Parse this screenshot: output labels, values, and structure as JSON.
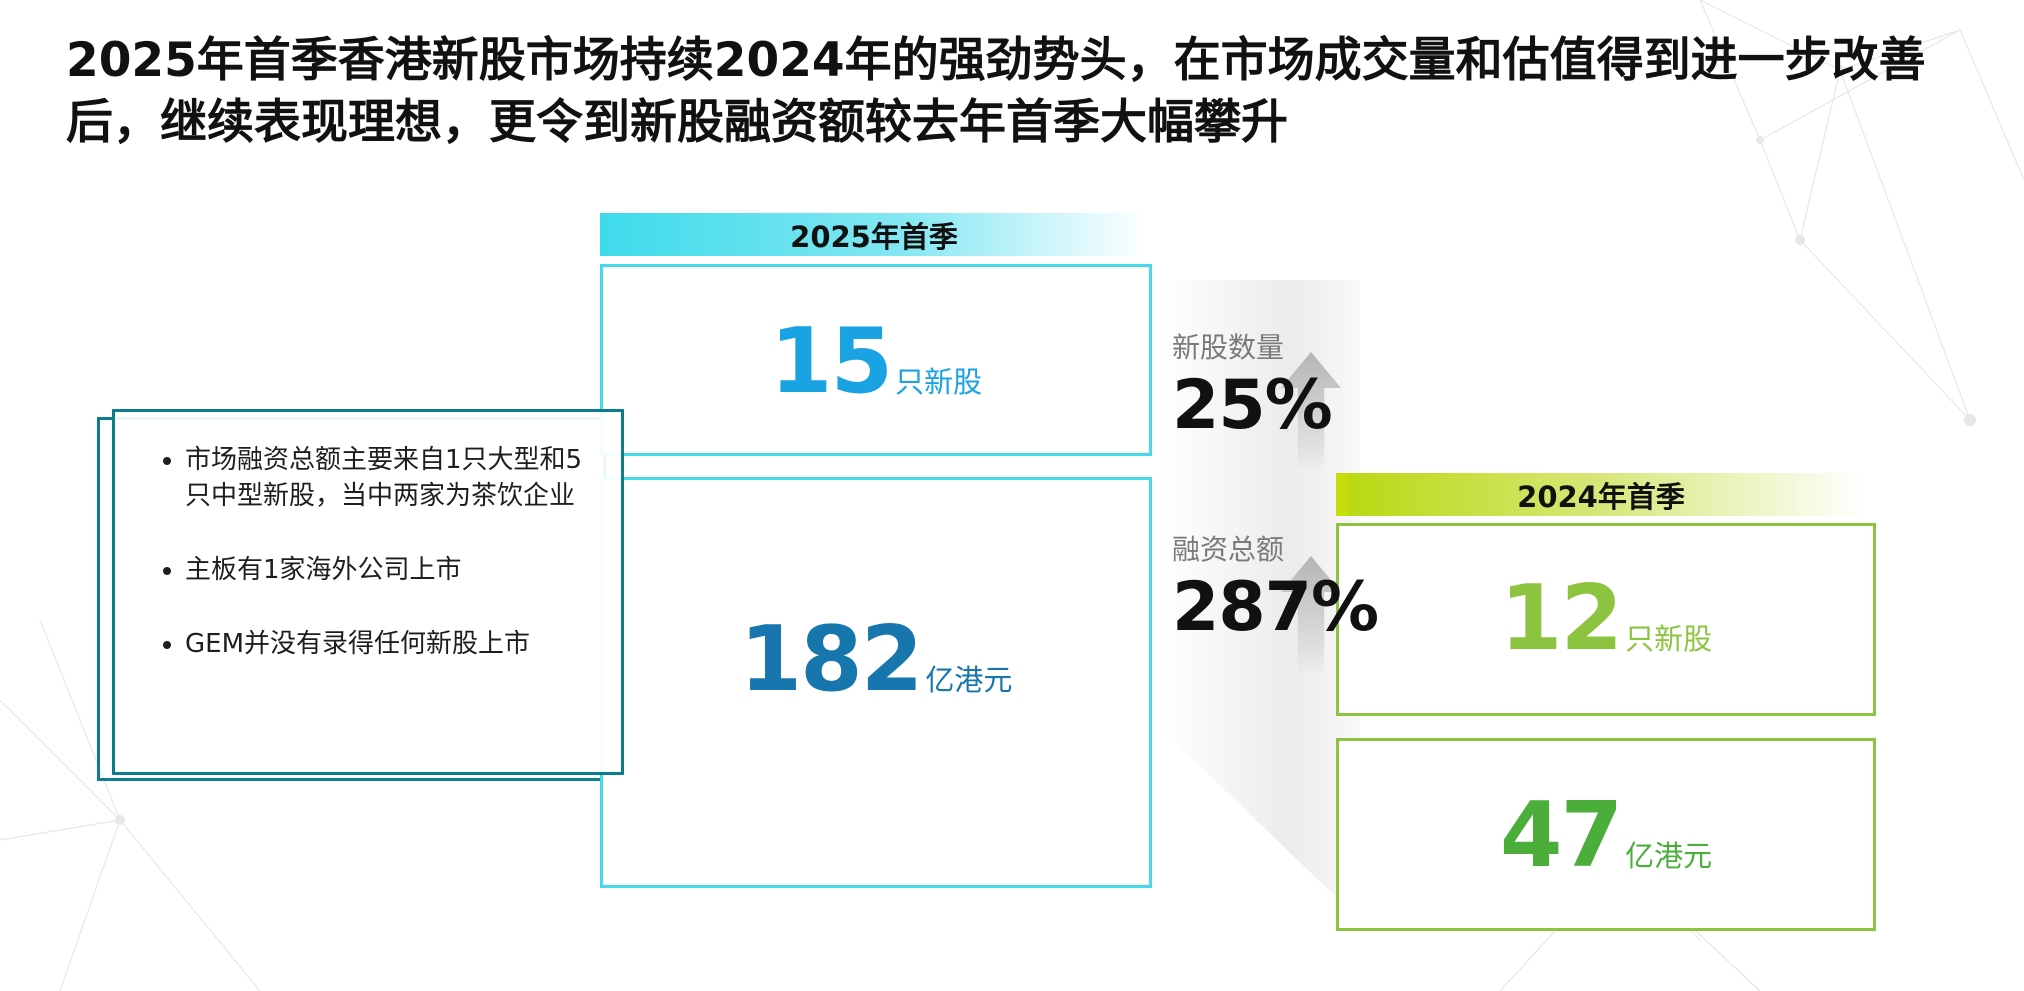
{
  "slide": {
    "title": "2025年首季香港新股市场持续2024年的强劲势头，在市场成交量和估值得到进一步改善后，继续表现理想，更令到新股融资额较去年首季大幅攀升"
  },
  "notes": {
    "items": [
      "市场融资总额主要来自1只大型和5只中型新股，当中两家为茶饮企业",
      "主板有1家海外公司上市",
      "GEM并没有录得任何新股上市"
    ]
  },
  "q1_2025": {
    "label": "2025年首季",
    "ipo_count": "15",
    "ipo_count_unit": "只新股",
    "funds_raised": "182",
    "funds_raised_unit": "亿港元"
  },
  "q1_2024": {
    "label": "2024年首季",
    "ipo_count": "12",
    "ipo_count_unit": "只新股",
    "funds_raised": "47",
    "funds_raised_unit": "亿港元"
  },
  "growth": {
    "ipo_count_label": "新股数量",
    "ipo_count_change": "25%",
    "funds_label": "融资总额",
    "funds_change": "287%"
  },
  "colors": {
    "accent_2025": "#47d9ea",
    "accent_2024": "#8dc43f",
    "notes_border": "#0d7e8e"
  },
  "icons": {
    "growth_indicator": "up-arrow-icon"
  }
}
